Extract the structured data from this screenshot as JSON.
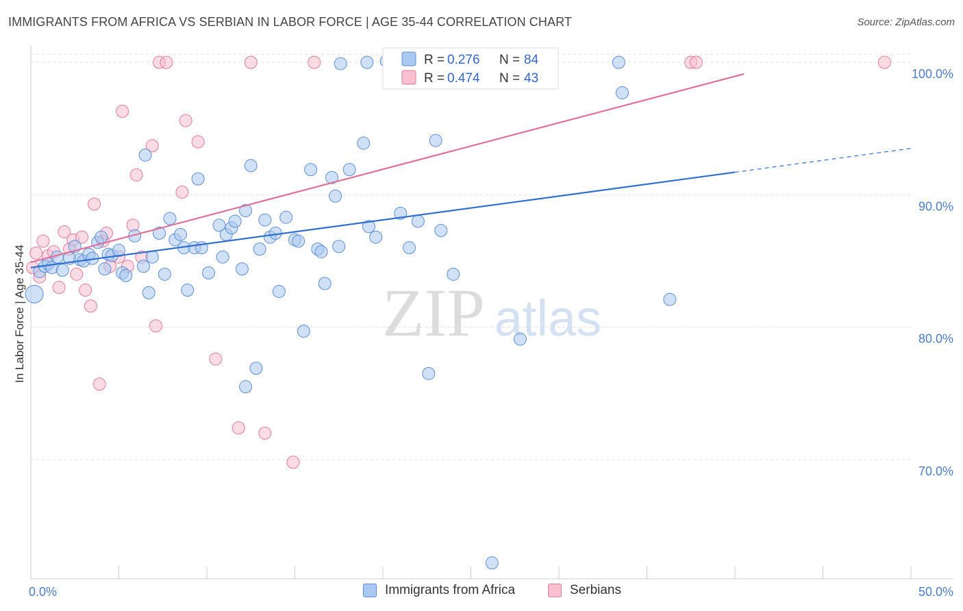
{
  "colors": {
    "africa_fill": "#aac8f0",
    "africa_stroke": "#5b8ed8",
    "africa_line": "#2f6fd0",
    "serbian_fill": "#f8c0d0",
    "serbian_stroke": "#e27a9a",
    "serbian_line": "#e0709a",
    "tick_label": "#4a7cc7",
    "grid": "#dddddd"
  },
  "chart_data": {
    "type": "scatter",
    "title": "IMMIGRANTS FROM AFRICA VS SERBIAN IN LABOR FORCE | AGE 35-44 CORRELATION CHART",
    "source": "Source: ZipAtlas.com",
    "ylabel": "In Labor Force | Age 35-44",
    "watermark": {
      "zip": "ZIP",
      "atlas": "atlas"
    },
    "xlim": [
      0,
      50
    ],
    "ylim": [
      61,
      101.5
    ],
    "x_ticks": [
      "0.0%",
      "50.0%"
    ],
    "y_ticks": [
      {
        "value": 100,
        "label": "100.0%"
      },
      {
        "value": 90,
        "label": "90.0%"
      },
      {
        "value": 80,
        "label": "80.0%"
      },
      {
        "value": 70,
        "label": "70.0%"
      }
    ],
    "legend": {
      "rows": [
        {
          "r_label": "R = ",
          "r_value": "0.276",
          "n_label": "N = ",
          "n_value": "84"
        },
        {
          "r_label": "R = ",
          "r_value": "0.474",
          "n_label": "N = ",
          "n_value": "43"
        }
      ]
    },
    "series": [
      {
        "name": "Immigrants from Africa",
        "trend": {
          "x0": 0,
          "y0": 84.5,
          "x1": 40,
          "y1": 91.7,
          "dash_to_x": 50,
          "dash_to_y": 93.5
        },
        "points": [
          [
            0.2,
            82.5
          ],
          [
            0.5,
            84.2
          ],
          [
            0.8,
            84.6
          ],
          [
            1.0,
            84.8
          ],
          [
            1.2,
            84.5
          ],
          [
            1.5,
            85.3
          ],
          [
            1.8,
            84.3
          ],
          [
            2.2,
            85.2
          ],
          [
            2.5,
            86.1
          ],
          [
            2.8,
            85.1
          ],
          [
            3.0,
            85.0
          ],
          [
            3.3,
            85.5
          ],
          [
            3.5,
            85.2
          ],
          [
            3.8,
            86.4
          ],
          [
            4.0,
            86.8
          ],
          [
            4.2,
            84.4
          ],
          [
            4.4,
            85.5
          ],
          [
            4.6,
            85.4
          ],
          [
            5.0,
            85.8
          ],
          [
            5.2,
            84.1
          ],
          [
            5.4,
            83.9
          ],
          [
            5.9,
            86.9
          ],
          [
            6.4,
            84.6
          ],
          [
            6.7,
            82.6
          ],
          [
            6.9,
            85.3
          ],
          [
            7.3,
            87.1
          ],
          [
            7.6,
            84.0
          ],
          [
            7.9,
            88.2
          ],
          [
            8.2,
            86.6
          ],
          [
            8.5,
            87.0
          ],
          [
            8.7,
            86.0
          ],
          [
            8.9,
            82.8
          ],
          [
            9.3,
            86.0
          ],
          [
            9.5,
            91.2
          ],
          [
            9.7,
            86.0
          ],
          [
            10.1,
            84.1
          ],
          [
            10.7,
            87.7
          ],
          [
            10.9,
            85.3
          ],
          [
            11.1,
            87.0
          ],
          [
            11.4,
            87.5
          ],
          [
            11.6,
            88.0
          ],
          [
            12.0,
            84.4
          ],
          [
            12.2,
            88.8
          ],
          [
            12.5,
            92.2
          ],
          [
            12.8,
            76.9
          ],
          [
            13.0,
            85.9
          ],
          [
            13.3,
            88.1
          ],
          [
            13.6,
            86.8
          ],
          [
            13.9,
            87.1
          ],
          [
            14.1,
            82.7
          ],
          [
            14.5,
            88.3
          ],
          [
            15.0,
            86.6
          ],
          [
            15.2,
            86.5
          ],
          [
            15.5,
            79.7
          ],
          [
            15.9,
            91.9
          ],
          [
            16.3,
            85.9
          ],
          [
            16.5,
            85.7
          ],
          [
            16.7,
            83.3
          ],
          [
            17.1,
            91.3
          ],
          [
            17.3,
            89.9
          ],
          [
            17.5,
            86.1
          ],
          [
            17.6,
            99.9
          ],
          [
            18.1,
            91.9
          ],
          [
            18.9,
            93.9
          ],
          [
            19.1,
            100.0
          ],
          [
            19.2,
            87.6
          ],
          [
            19.6,
            86.8
          ],
          [
            20.2,
            100.1
          ],
          [
            21.0,
            88.6
          ],
          [
            21.5,
            86.0
          ],
          [
            22.0,
            88.0
          ],
          [
            22.6,
            76.5
          ],
          [
            23.0,
            94.1
          ],
          [
            23.3,
            87.3
          ],
          [
            24.0,
            84.0
          ],
          [
            26.0,
            100.0
          ],
          [
            27.8,
            79.1
          ],
          [
            29.5,
            100.0
          ],
          [
            33.4,
            100.0
          ],
          [
            33.6,
            97.7
          ],
          [
            36.3,
            82.1
          ],
          [
            26.2,
            62.2
          ],
          [
            12.2,
            75.5
          ],
          [
            6.5,
            93.0
          ]
        ]
      },
      {
        "name": "Serbians",
        "trend": {
          "x0": 0,
          "y0": 84.9,
          "x1": 40.5,
          "y1": 100.0
        },
        "points": [
          [
            0.1,
            84.5
          ],
          [
            0.3,
            85.6
          ],
          [
            0.5,
            83.8
          ],
          [
            0.7,
            86.5
          ],
          [
            1.0,
            85.4
          ],
          [
            1.3,
            85.7
          ],
          [
            1.6,
            83.0
          ],
          [
            1.9,
            87.2
          ],
          [
            2.2,
            85.9
          ],
          [
            2.4,
            86.6
          ],
          [
            2.6,
            84.0
          ],
          [
            2.9,
            86.8
          ],
          [
            3.1,
            82.8
          ],
          [
            3.4,
            81.6
          ],
          [
            3.6,
            89.3
          ],
          [
            3.9,
            75.7
          ],
          [
            4.1,
            86.5
          ],
          [
            4.3,
            87.1
          ],
          [
            4.5,
            84.6
          ],
          [
            5.0,
            85.3
          ],
          [
            5.2,
            96.3
          ],
          [
            5.5,
            84.6
          ],
          [
            5.8,
            87.7
          ],
          [
            6.3,
            85.3
          ],
          [
            6.0,
            91.5
          ],
          [
            6.9,
            93.7
          ],
          [
            7.1,
            80.1
          ],
          [
            7.3,
            100.0
          ],
          [
            7.7,
            100.0
          ],
          [
            8.6,
            90.2
          ],
          [
            8.8,
            95.6
          ],
          [
            9.5,
            94.0
          ],
          [
            10.5,
            77.6
          ],
          [
            11.8,
            72.4
          ],
          [
            12.5,
            100.0
          ],
          [
            13.3,
            72.0
          ],
          [
            14.9,
            69.8
          ],
          [
            16.1,
            100.0
          ],
          [
            20.4,
            100.0
          ],
          [
            26.0,
            100.0
          ],
          [
            37.5,
            100.0
          ],
          [
            37.8,
            100.0
          ],
          [
            48.5,
            100.0
          ]
        ]
      }
    ]
  }
}
